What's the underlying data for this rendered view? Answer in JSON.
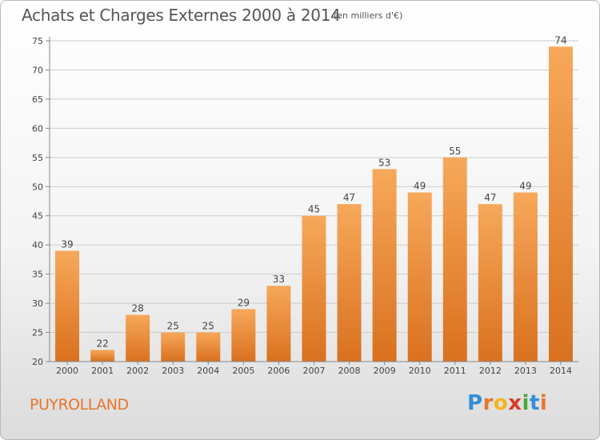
{
  "header": {
    "title": "Achats et Charges Externes 2000 à 2014",
    "subtitle": "(en milliers d'€)"
  },
  "footer": {
    "place": "PUYROLLAND",
    "brand": "Proxiti",
    "brand_letters": [
      "P",
      "r",
      "o",
      "x",
      "i",
      "t",
      "i"
    ],
    "brand_colors": [
      "#2f8fd8",
      "#e8762c",
      "#f2b51c",
      "#d93a2b",
      "#4aa83b",
      "#2f8fd8",
      "#e8762c"
    ]
  },
  "colors": {
    "bar_light": "#f7a85a",
    "bar_dark": "#d9711f",
    "grid": "#cccccc",
    "text": "#444444",
    "title": "#555555",
    "place": "#e8762c"
  },
  "chart_data": {
    "type": "bar",
    "title": "Achats et Charges Externes 2000 à 2014",
    "subtitle": "(en milliers d'€)",
    "categories": [
      "2000",
      "2001",
      "2002",
      "2003",
      "2004",
      "2005",
      "2006",
      "2007",
      "2008",
      "2009",
      "2010",
      "2011",
      "2012",
      "2013",
      "2014"
    ],
    "values": [
      39,
      22,
      28,
      25,
      25,
      29,
      33,
      45,
      47,
      53,
      49,
      55,
      47,
      49,
      74
    ],
    "ylim": [
      20,
      75
    ],
    "yticks": [
      20,
      25,
      30,
      35,
      40,
      45,
      50,
      55,
      60,
      65,
      70,
      75
    ],
    "grid": true,
    "data_labels": true
  }
}
